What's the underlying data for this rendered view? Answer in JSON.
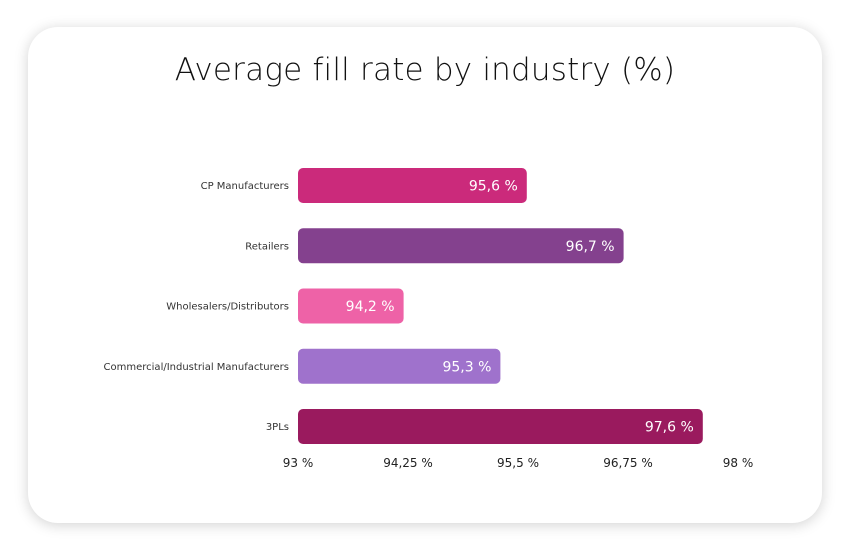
{
  "chart_data": {
    "type": "bar",
    "orientation": "horizontal",
    "title": "Average fill rate by industry (%)",
    "categories": [
      "CP Manufacturers",
      "Retailers",
      "Wholesalers/Distributors",
      "Commercial/Industrial Manufacturers",
      "3PLs"
    ],
    "values": [
      95.6,
      96.7,
      94.2,
      95.3,
      97.6
    ],
    "data_labels": [
      "95,6 %",
      "96,7 %",
      "94,2 %",
      "95,3 %",
      "97,6 %"
    ],
    "colors": [
      "#CB2A7B",
      "#84418E",
      "#EE62A7",
      "#9F72CC",
      "#9A1A5E"
    ],
    "xlim": [
      93,
      98
    ],
    "xticks": [
      93,
      94.25,
      95.5,
      96.75,
      98
    ],
    "xtick_labels": [
      "93 %",
      "94,25 %",
      "95,5 %",
      "96,75 %",
      "98 %"
    ],
    "grid": false,
    "legend": "none"
  }
}
